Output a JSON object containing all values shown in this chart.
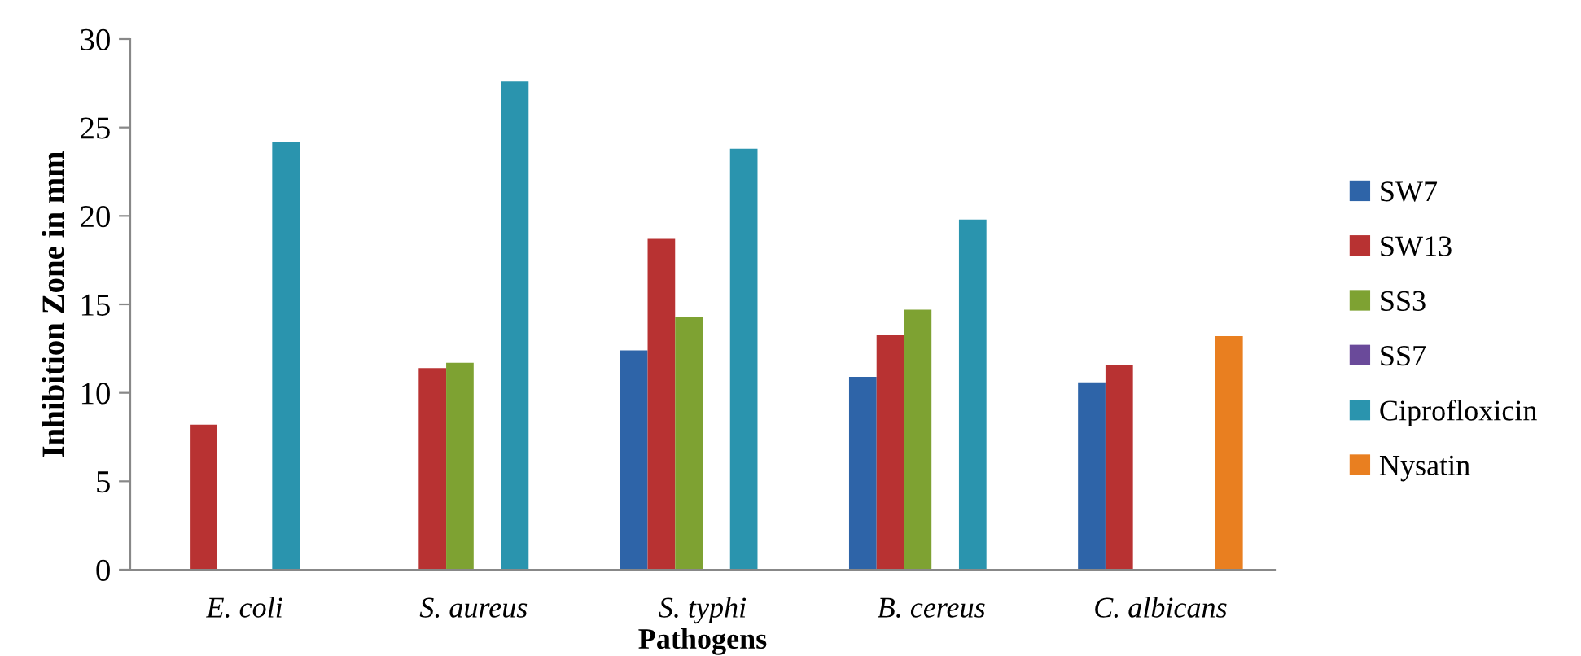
{
  "chart_data": {
    "type": "bar",
    "xlabel": "Pathogens",
    "ylabel": "Inhibition Zone in mm",
    "categories": [
      "E. coli",
      "S. aureus",
      "S. typhi",
      "B. cereus",
      "C. albicans"
    ],
    "series": [
      {
        "name": "SW7",
        "color": "#2e64a8",
        "values": [
          null,
          null,
          12.4,
          10.9,
          10.6
        ]
      },
      {
        "name": "SW13",
        "color": "#b83232",
        "values": [
          8.2,
          11.4,
          18.7,
          13.3,
          11.6
        ]
      },
      {
        "name": "SS3",
        "color": "#7ea232",
        "values": [
          null,
          11.7,
          14.3,
          14.7,
          null
        ]
      },
      {
        "name": "SS7",
        "color": "#6a4a9a",
        "values": [
          null,
          null,
          null,
          null,
          null
        ]
      },
      {
        "name": "Ciprofloxicin",
        "color": "#2a94ae",
        "values": [
          24.2,
          27.6,
          23.8,
          19.8,
          null
        ]
      },
      {
        "name": "Nysatin",
        "color": "#e97f20",
        "values": [
          null,
          null,
          null,
          null,
          13.2
        ]
      }
    ],
    "ylim": [
      0,
      30
    ],
    "yticks": [
      0,
      5,
      10,
      15,
      20,
      25,
      30
    ],
    "grid": false,
    "legend": "right"
  }
}
